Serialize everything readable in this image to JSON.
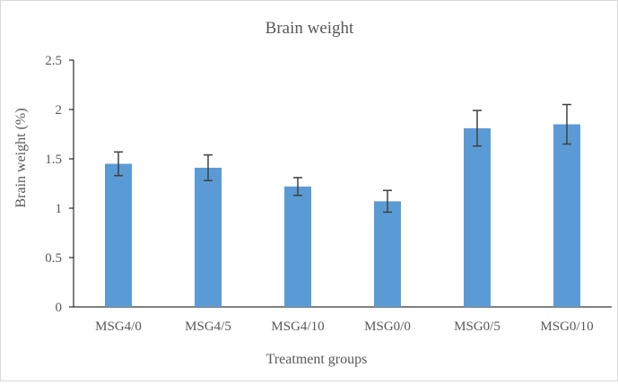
{
  "chart_data": {
    "type": "bar",
    "title": "Brain weight",
    "xlabel": "Treatment  groups",
    "ylabel": "Brain weight  (%)",
    "categories": [
      "MSG4/0",
      "MSG4/5",
      "MSG4/10",
      "MSG0/0",
      "MSG0/5",
      "MSG0/10"
    ],
    "values": [
      1.45,
      1.41,
      1.22,
      1.07,
      1.81,
      1.85
    ],
    "error": [
      0.12,
      0.13,
      0.09,
      0.11,
      0.18,
      0.2
    ],
    "ylim": [
      0,
      2.5
    ],
    "yticks": [
      "0",
      "0.5",
      "1",
      "1.5",
      "2",
      "2.5"
    ],
    "ytick_values": [
      0,
      0.5,
      1,
      1.5,
      2,
      2.5
    ],
    "grid": false,
    "legend": "none",
    "bar_color": "#5b9bd5",
    "error_bar_color": "#404040",
    "axis_color": "#000000",
    "text_color": "#595959"
  }
}
